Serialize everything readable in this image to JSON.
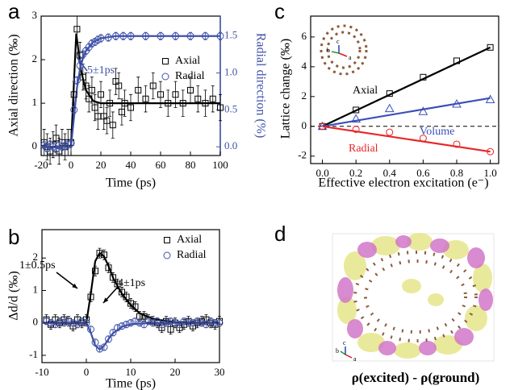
{
  "chart_data": [
    {
      "type": "line",
      "panel_label": "a",
      "xlabel": "Time (ps)",
      "ylabel": "Axial direction (‰)",
      "y2label": "Radial direction (%)",
      "xlim": [
        -20,
        100
      ],
      "xticks": [
        -20,
        0,
        20,
        40,
        60,
        80,
        100
      ],
      "ylim": [
        -0.2,
        3
      ],
      "yticks": [
        0,
        1,
        2,
        3
      ],
      "y2lim": [
        -0.118,
        1.77
      ],
      "y2ticks": [
        {
          "value": 0,
          "label": "0.0"
        },
        {
          "value": 0.5,
          "label": "0.5"
        },
        {
          "value": 1,
          "label": "1.0"
        },
        {
          "value": 1.5,
          "label": "1.5"
        }
      ],
      "legend": "upper right",
      "annotations": [
        {
          "text": "5±1ps",
          "color": "#3f51a8"
        }
      ],
      "series": [
        {
          "color": "#000000",
          "line": true,
          "x": [
            -20,
            0,
            2,
            3.5,
            5,
            7,
            10,
            15,
            20,
            100
          ],
          "values": [
            0,
            0,
            1.5,
            2.6,
            2.2,
            1.7,
            1.3,
            1.05,
            1.0,
            1.0
          ]
        },
        {
          "color": "#3f51a8",
          "line": true,
          "axis": "y2",
          "x": [
            -20,
            0,
            2,
            4,
            6,
            8,
            10,
            15,
            20,
            30,
            100
          ],
          "values": [
            0,
            0,
            0.4,
            0.8,
            1.05,
            1.2,
            1.3,
            1.42,
            1.47,
            1.5,
            1.5
          ]
        },
        {
          "name": "Axial",
          "color": "#000000",
          "marker": "square",
          "error": 0.3,
          "x": [
            -18,
            -16,
            -14,
            -12,
            -10,
            -8,
            -6,
            -4,
            -2,
            0,
            2,
            4,
            6,
            8,
            10,
            12,
            14,
            16,
            18,
            20,
            22,
            24,
            26,
            28,
            30,
            32,
            34,
            36,
            40,
            45,
            50,
            55,
            60,
            65,
            70,
            75,
            80,
            85,
            90,
            95,
            100
          ],
          "values": [
            0.1,
            0,
            -0.1,
            0.05,
            0.2,
            -0.1,
            0.1,
            0,
            0.1,
            0.1,
            1.2,
            2.7,
            2.1,
            1.6,
            1.4,
            1.1,
            1.3,
            0.9,
            0.7,
            1.2,
            0.7,
            0.6,
            1.0,
            0.5,
            1.5,
            1.4,
            0.8,
            1.0,
            0.9,
            1.3,
            1.1,
            1.4,
            1.2,
            1.0,
            1.2,
            1.0,
            1.3,
            1.1,
            1.0,
            1.1,
            0.9
          ]
        },
        {
          "name": "Radial",
          "color": "#3f51a8",
          "marker": "circle",
          "axis": "y2",
          "error": 0.05,
          "x": [
            -18,
            -16,
            -14,
            -12,
            -10,
            -8,
            -6,
            -4,
            -2,
            0,
            2,
            4,
            6,
            8,
            10,
            12,
            14,
            16,
            18,
            20,
            25,
            30,
            35,
            40,
            50,
            60,
            70,
            80,
            90,
            100
          ],
          "values": [
            0.02,
            -0.02,
            0.03,
            0,
            -0.03,
            0.02,
            0,
            0.01,
            0.03,
            0.05,
            0.5,
            0.9,
            1.1,
            1.25,
            1.3,
            1.35,
            1.4,
            1.42,
            1.45,
            1.47,
            1.48,
            1.5,
            1.5,
            1.5,
            1.5,
            1.5,
            1.5,
            1.5,
            1.5,
            1.5
          ]
        }
      ]
    },
    {
      "type": "line",
      "panel_label": "b",
      "xlabel": "Time (ps)",
      "ylabel": "Δd/d (‰)",
      "xlim": [
        -10,
        30
      ],
      "xticks": [
        -10,
        0,
        10,
        20,
        30
      ],
      "ylim": [
        -1.225,
        2.875
      ],
      "yticks": [
        -1,
        0,
        1,
        2
      ],
      "legend": "upper right",
      "annotations": [
        {
          "text": "1±0.5ps",
          "color": "#000000"
        },
        {
          "text": "4±1ps",
          "color": "#000000"
        }
      ],
      "series": [
        {
          "color": "#000000",
          "line": true,
          "x": [
            -10,
            0,
            1,
            2,
            3,
            4,
            5,
            6,
            8,
            10,
            12,
            15,
            20,
            30
          ],
          "values": [
            0,
            0,
            0.9,
            1.9,
            2.15,
            2.05,
            1.75,
            1.4,
            0.9,
            0.55,
            0.3,
            0.12,
            0.02,
            0
          ]
        },
        {
          "color": "#3f51a8",
          "line": true,
          "x": [
            -10,
            0,
            1,
            2,
            3,
            4,
            5,
            6,
            8,
            10,
            15,
            30
          ],
          "values": [
            0,
            0,
            -0.3,
            -0.7,
            -0.82,
            -0.7,
            -0.5,
            -0.32,
            -0.12,
            -0.04,
            0,
            0
          ]
        },
        {
          "name": "Axial",
          "color": "#000000",
          "marker": "square",
          "error": 0.15,
          "x": [
            -9,
            -8,
            -7,
            -6,
            -5,
            -4,
            -3,
            -2,
            -1,
            0,
            1,
            2,
            3,
            4,
            5,
            6,
            7,
            8,
            9,
            10,
            11,
            12,
            13,
            14,
            15,
            16,
            17,
            18,
            19,
            20,
            21,
            22,
            23,
            24,
            25,
            26,
            27,
            28,
            29,
            30
          ],
          "values": [
            0.1,
            -0.05,
            0.1,
            0,
            0.1,
            0.05,
            -0.1,
            0.1,
            0,
            0.1,
            0.8,
            1.6,
            2.15,
            2.1,
            1.7,
            1.4,
            1.2,
            0.95,
            0.8,
            0.6,
            0.5,
            0.2,
            0.2,
            0.1,
            0.05,
            0,
            -0.15,
            0.05,
            -0.2,
            0,
            -0.15,
            -0.05,
            0.05,
            -0.1,
            0,
            0.05,
            0.1,
            0,
            -0.05,
            0.05
          ]
        },
        {
          "name": "Radial",
          "color": "#3f51a8",
          "marker": "circle",
          "error": 0.1,
          "x": [
            -9,
            -8,
            -7,
            -6,
            -5,
            -4,
            -3,
            -2,
            -1,
            0,
            1,
            2,
            3,
            4,
            5,
            6,
            7,
            8,
            9,
            10,
            11,
            12,
            13,
            14,
            15,
            16,
            17,
            18,
            19,
            20,
            21,
            22,
            23,
            24,
            25,
            26,
            27,
            28,
            29,
            30
          ],
          "values": [
            0.05,
            0,
            -0.05,
            0.05,
            0,
            0.05,
            0,
            -0.05,
            0.05,
            0,
            -0.2,
            -0.6,
            -0.8,
            -0.75,
            -0.5,
            -0.3,
            -0.15,
            -0.1,
            -0.05,
            0,
            0.05,
            0,
            -0.05,
            0.05,
            0,
            0.05,
            -0.05,
            0,
            0.05,
            0,
            -0.05,
            0.05,
            0,
            0,
            0.05,
            0,
            -0.05,
            0.05,
            0,
            0
          ]
        }
      ]
    },
    {
      "type": "line",
      "panel_label": "c",
      "xlabel": "Effective electron excitation (e⁻)",
      "ylabel": "Lattice change (‰)",
      "xlim": [
        -0.07,
        1.05
      ],
      "xticks": [
        {
          "value": 0,
          "label": "0.0"
        },
        {
          "value": 0.2,
          "label": "0.2"
        },
        {
          "value": 0.4,
          "label": "0.4"
        },
        {
          "value": 0.6,
          "label": "0.6"
        },
        {
          "value": 0.8,
          "label": "0.8"
        },
        {
          "value": 1,
          "label": "1.0"
        }
      ],
      "ylim": [
        -2.5,
        7.4
      ],
      "yticks": [
        -2,
        0,
        2,
        4,
        6
      ],
      "reference_line": 0,
      "inset_axis_labels": [
        "b",
        "c",
        "a"
      ],
      "series": [
        {
          "color": "#000000",
          "line": true,
          "x": [
            0,
            1
          ],
          "values": [
            0,
            5.3
          ]
        },
        {
          "color": "#3b4fb8",
          "line": true,
          "x": [
            0,
            1
          ],
          "values": [
            0,
            1.9
          ]
        },
        {
          "color": "#e8262a",
          "line": true,
          "x": [
            0,
            1
          ],
          "values": [
            0,
            -1.7
          ]
        },
        {
          "name": "Axial",
          "color": "#000000",
          "marker": "square",
          "x": [
            0,
            0.2,
            0.4,
            0.6,
            0.8,
            1
          ],
          "values": [
            0,
            1.1,
            2.2,
            3.3,
            4.4,
            5.3
          ]
        },
        {
          "name": "Volume",
          "color": "#3b4fb8",
          "marker": "triangle",
          "x": [
            0,
            0.2,
            0.4,
            0.6,
            0.8,
            1
          ],
          "values": [
            0,
            0.5,
            1.2,
            1.0,
            1.5,
            1.8
          ]
        },
        {
          "name": "Radial",
          "color": "#e8262a",
          "marker": "circle",
          "x": [
            0,
            0.2,
            0.4,
            0.6,
            0.8,
            1
          ],
          "values": [
            0,
            -0.2,
            -0.4,
            -0.8,
            -1.2,
            -1.7
          ]
        }
      ]
    }
  ],
  "panel_d": {
    "label": "d",
    "caption": "ρ(excited) - ρ(ground)",
    "axis_labels": [
      "b",
      "c",
      "a"
    ]
  }
}
